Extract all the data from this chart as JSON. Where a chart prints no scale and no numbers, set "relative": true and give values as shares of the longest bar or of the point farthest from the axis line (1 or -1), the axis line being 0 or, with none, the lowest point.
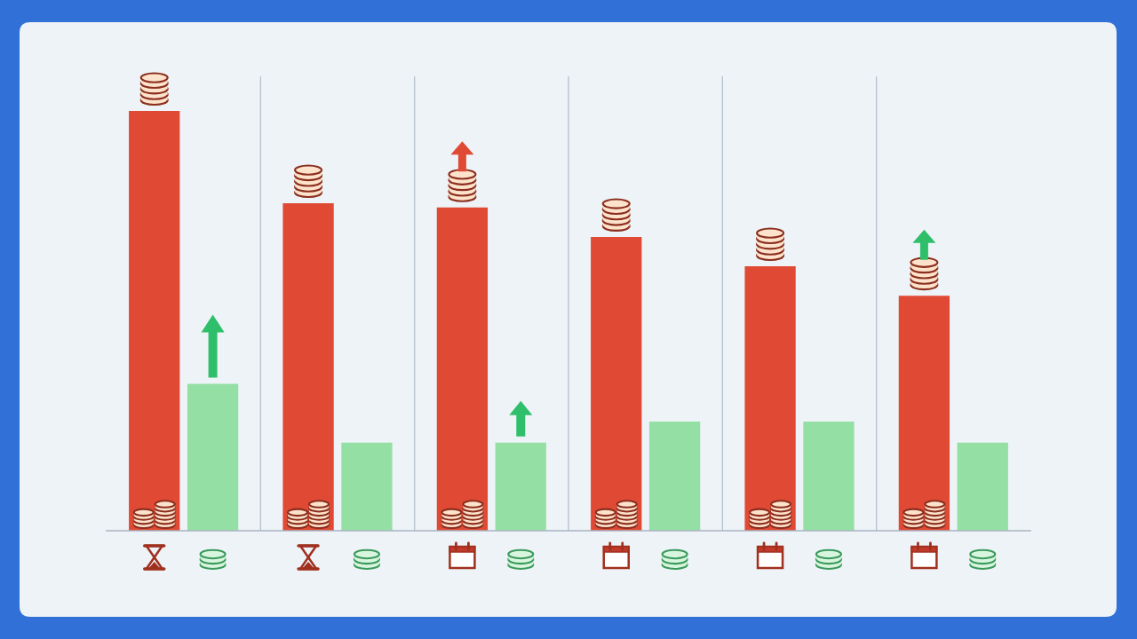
{
  "chart_data": {
    "type": "bar",
    "relative": true,
    "categories": [
      null,
      null,
      null,
      null,
      null,
      null
    ],
    "series": [
      {
        "color": "#e04a34",
        "values": [
          1,
          0.78,
          0.77,
          0.7,
          0.63,
          0.56
        ]
      },
      {
        "color": "#94e0a4",
        "values": [
          0.35,
          0.21,
          0.21,
          0.26,
          0.26,
          0.21
        ]
      }
    ],
    "grid": "x"
  }
}
